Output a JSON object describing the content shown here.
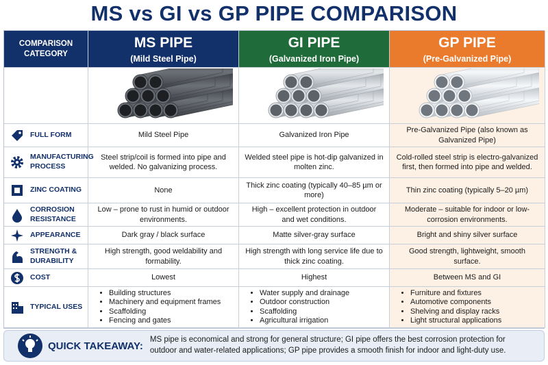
{
  "title": "MS vs GI vs GP PIPE COMPARISON",
  "table": {
    "category_header": "COMPARISON CATEGORY",
    "columns": [
      {
        "name": "MS PIPE",
        "subtitle": "(Mild Steel Pipe)"
      },
      {
        "name": "GI PIPE",
        "subtitle": "(Galvanized Iron Pipe)"
      },
      {
        "name": "GP PIPE",
        "subtitle": "(Pre-Galvanized Pipe)"
      }
    ],
    "rows": [
      {
        "label": "FULL FORM",
        "cells": [
          "Mild Steel Pipe",
          "Galvanized Iron Pipe",
          "Pre-Galvanized Pipe (also known as Galvanized Pipe)"
        ]
      },
      {
        "label": "MANUFACTURING PROCESS",
        "cells": [
          "Steel strip/coil is formed into pipe and welded. No galvanizing process.",
          "Welded steel pipe is hot-dip galvanized in molten zinc.",
          "Cold-rolled steel strip is electro-galvanized first, then formed into pipe and welded."
        ]
      },
      {
        "label": "ZINC COATING",
        "cells": [
          "None",
          "Thick zinc coating (typically 40–85 µm or more)",
          "Thin zinc coating (typically 5–20 µm)"
        ]
      },
      {
        "label": "CORROSION RESISTANCE",
        "cells": [
          "Low – prone to rust in humid or outdoor environments.",
          "High – excellent protection in outdoor and wet conditions.",
          "Moderate – suitable for indoor or low-corrosion environments."
        ]
      },
      {
        "label": "APPEARANCE",
        "cells": [
          "Dark gray / black surface",
          "Matte silver-gray surface",
          "Bright and shiny silver surface"
        ]
      },
      {
        "label": "STRENGTH & DURABILITY",
        "cells": [
          "High strength, good weldability and formability.",
          "High strength with long service life due to thick zinc coating.",
          "Good strength, lightweight, smooth surface."
        ]
      },
      {
        "label": "COST",
        "cells": [
          "Lowest",
          "Highest",
          "Between MS and GI"
        ]
      },
      {
        "label": "TYPICAL USES",
        "cells": [
          [
            "Building structures",
            "Machinery and equipment frames",
            "Scaffolding",
            "Fencing and gates"
          ],
          [
            "Water supply and drainage",
            "Outdoor construction",
            "Scaffolding",
            "Agricultural irrigation"
          ],
          [
            "Furniture and fixtures",
            "Automotive components",
            "Shelving and display racks",
            "Light structural applications"
          ]
        ]
      }
    ]
  },
  "takeaway": {
    "label": "QUICK TAKEAWAY:",
    "text": "MS pipe is economical and strong for general structure; GI pipe offers the best corrosion protection for outdoor and water-related applications; GP pipe provides a smooth finish for indoor and light-duty use."
  }
}
